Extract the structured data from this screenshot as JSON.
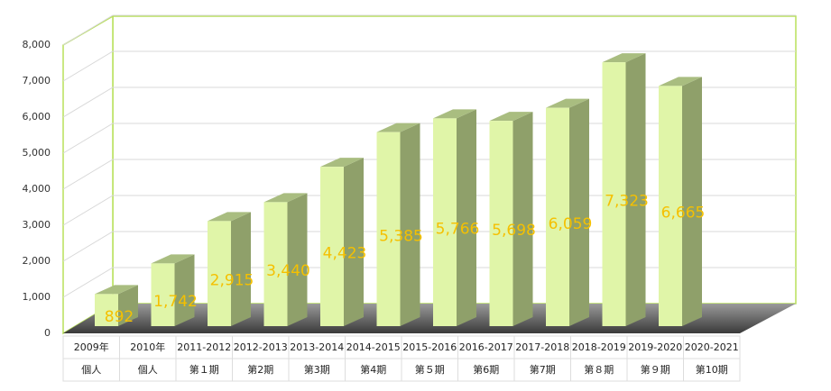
{
  "chart_data": {
    "type": "bar3d",
    "categories": [
      [
        "2009年",
        "個人"
      ],
      [
        "2010年",
        "個人"
      ],
      [
        "2011-2012",
        "第１期"
      ],
      [
        "2012-2013",
        "第2期"
      ],
      [
        "2013-2014",
        "第3期"
      ],
      [
        "2014-2015",
        "第4期"
      ],
      [
        "2015-2016",
        "第５期"
      ],
      [
        "2016-2017",
        "第6期"
      ],
      [
        "2017-2018",
        "第7期"
      ],
      [
        "2018-2019",
        "第８期"
      ],
      [
        "2019-2020",
        "第９期"
      ],
      [
        "2020-2021",
        "第10期"
      ]
    ],
    "values": [
      892,
      1742,
      2915,
      3440,
      4423,
      5385,
      5766,
      5698,
      6059,
      7323,
      6665,
      null
    ],
    "value_labels": [
      "892",
      "1,742",
      "2,915",
      "3,440",
      "4,423",
      "5,385",
      "5,766",
      "5,698",
      "6,059",
      "7,323",
      "6,665",
      null
    ],
    "color": "#e0f5a8",
    "ylim": [
      0,
      8000
    ],
    "yticks": [
      0,
      {
        "value": 1000,
        "label": "1,000"
      },
      {
        "value": 2000,
        "label": "2,000"
      },
      {
        "value": 3000,
        "label": "3,000"
      },
      {
        "value": 4000,
        "label": "4,000"
      },
      {
        "value": 5000,
        "label": "5,000"
      },
      {
        "value": 6000,
        "label": "6,000"
      },
      {
        "value": 7000,
        "label": "7,000"
      },
      {
        "value": 8000,
        "label": "8,000"
      }
    ],
    "grid": true
  }
}
